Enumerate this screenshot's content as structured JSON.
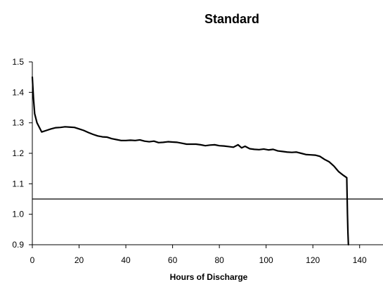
{
  "chart_data": {
    "type": "line",
    "title": "Standard",
    "xlabel": "Hours of Discharge",
    "ylabel": "",
    "xlim": [
      0,
      150
    ],
    "ylim": [
      0.9,
      1.5
    ],
    "x_ticks": [
      0,
      20,
      40,
      60,
      80,
      100,
      120,
      140
    ],
    "y_ticks": [
      0.9,
      1.0,
      1.1,
      1.2,
      1.3,
      1.4,
      1.5
    ],
    "y_tick_labels": [
      "0.9",
      "1.0",
      "1.1",
      "1.2",
      "1.3",
      "1.4",
      "1.5"
    ],
    "grid": false,
    "legend": "none",
    "line_color": "#000000",
    "reference_line": {
      "y": 1.05,
      "color": "#000000"
    },
    "series": [
      {
        "x": [
          0,
          0.5,
          1,
          2,
          3,
          4,
          6,
          8,
          10,
          12,
          14,
          16,
          18,
          20,
          22,
          24,
          26,
          28,
          30,
          32,
          34,
          36,
          38,
          40,
          42,
          44,
          46,
          48,
          50,
          52,
          54,
          56,
          58,
          60,
          62,
          64,
          66,
          68,
          70,
          72,
          74,
          76,
          78,
          80,
          82,
          84,
          86,
          88,
          89.5,
          91,
          93,
          95,
          97,
          99,
          101,
          103,
          105,
          107,
          109,
          111,
          113,
          115,
          117,
          119,
          121,
          123,
          125,
          127,
          129,
          131,
          133,
          134.5,
          134.8,
          135,
          135.2
        ],
        "y": [
          1.45,
          1.38,
          1.33,
          1.3,
          1.285,
          1.27,
          1.275,
          1.28,
          1.284,
          1.285,
          1.287,
          1.286,
          1.285,
          1.28,
          1.275,
          1.268,
          1.262,
          1.257,
          1.254,
          1.253,
          1.248,
          1.245,
          1.242,
          1.242,
          1.243,
          1.242,
          1.244,
          1.24,
          1.238,
          1.24,
          1.235,
          1.236,
          1.238,
          1.237,
          1.236,
          1.233,
          1.23,
          1.23,
          1.23,
          1.228,
          1.225,
          1.227,
          1.228,
          1.225,
          1.224,
          1.222,
          1.22,
          1.228,
          1.218,
          1.223,
          1.215,
          1.213,
          1.212,
          1.214,
          1.211,
          1.213,
          1.208,
          1.206,
          1.204,
          1.203,
          1.204,
          1.2,
          1.196,
          1.195,
          1.194,
          1.19,
          1.18,
          1.172,
          1.158,
          1.14,
          1.128,
          1.12,
          1.0,
          0.94,
          0.9
        ]
      }
    ]
  }
}
